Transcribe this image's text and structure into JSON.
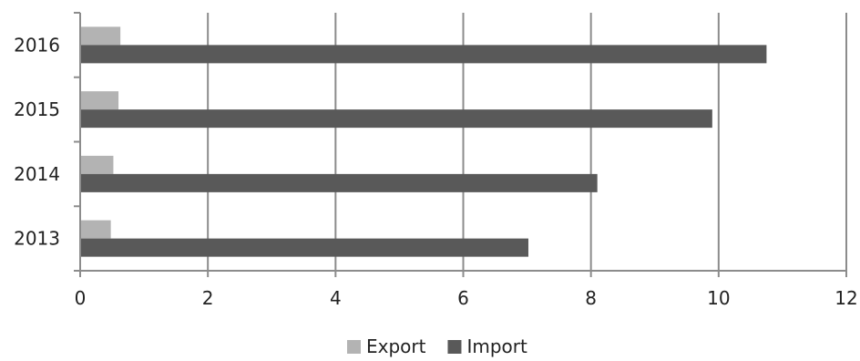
{
  "chart_data": {
    "type": "bar",
    "orientation": "horizontal",
    "categories": [
      "2013",
      "2014",
      "2015",
      "2016"
    ],
    "series": [
      {
        "name": "Export",
        "values": [
          0.48,
          0.52,
          0.6,
          0.63
        ],
        "color": "#b3b3b3"
      },
      {
        "name": "Import",
        "values": [
          7.02,
          8.1,
          9.9,
          10.75
        ],
        "color": "#595959"
      }
    ],
    "xlim": [
      0,
      12
    ],
    "xticks": [
      "0",
      "2",
      "4",
      "6",
      "8",
      "10",
      "12"
    ],
    "grid": true,
    "legend_position": "bottom"
  }
}
